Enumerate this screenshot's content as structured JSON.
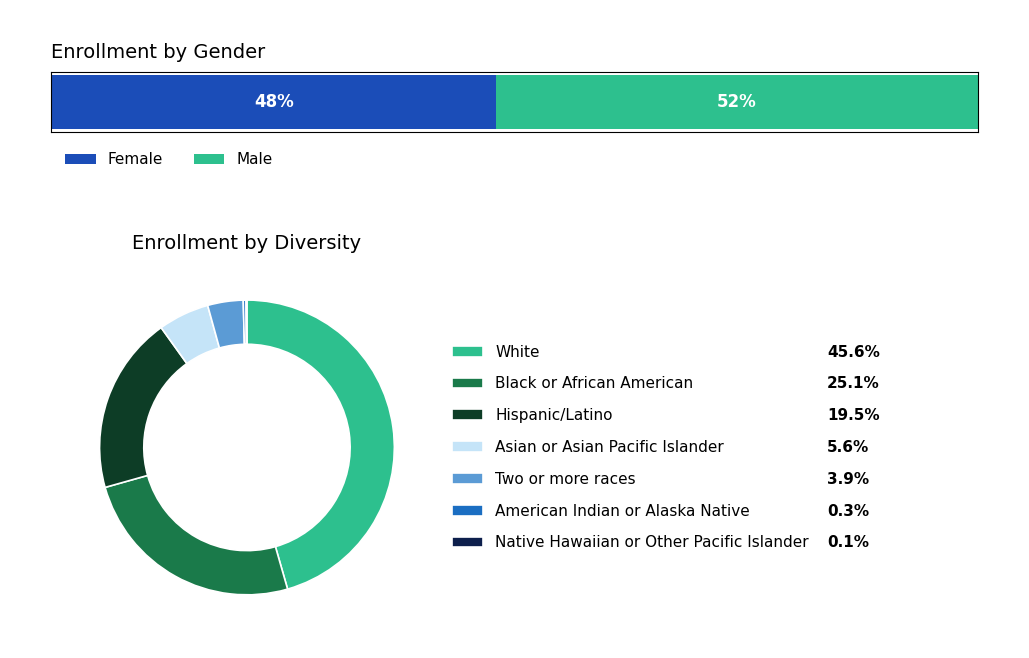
{
  "chart_data": [
    {
      "type": "bar",
      "orientation": "horizontal",
      "stacked": true,
      "title": "Enrollment by Gender",
      "categories": [
        null
      ],
      "series": [
        {
          "name": "Female",
          "color": "#1B4DB8",
          "values": [
            48
          ],
          "value_labels": [
            "48%"
          ]
        },
        {
          "name": "Male",
          "color": "#2DC08E",
          "values": [
            52
          ],
          "value_labels": [
            "52%"
          ]
        }
      ],
      "xlim": [
        0,
        100
      ],
      "data_labels": true,
      "tick_labels": false,
      "legend": "upper left"
    },
    {
      "type": "pie",
      "title": "Enrollment by Diversity",
      "categories": [
        "White",
        "Black or African American",
        "Hispanic/Latino",
        "Asian or Asian Pacific Islander",
        "Two or more races",
        "American Indian or Alaska Native",
        "Native Hawaiian or Other Pacific Islander"
      ],
      "values": [
        45.6,
        25.1,
        19.5,
        5.6,
        3.9,
        0.3,
        0.1
      ],
      "value_labels": [
        "45.6%",
        "25.1%",
        "19.5%",
        "5.6%",
        "3.9%",
        "0.3%",
        "0.1%"
      ],
      "colors": [
        "#2DC08E",
        "#1A7A4A",
        "#0D3D26",
        "#C5E4F8",
        "#5B9BD5",
        "#1B6EC2",
        "#0D1F4C"
      ],
      "data_labels": true,
      "legend": "center left"
    }
  ]
}
